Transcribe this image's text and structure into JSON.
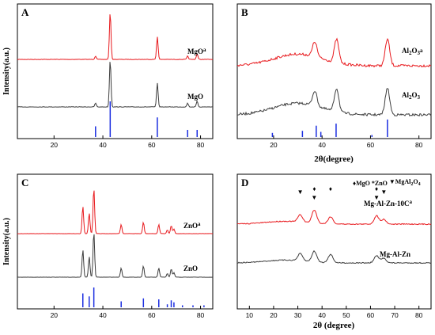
{
  "chart_data": [
    {
      "panel": "A",
      "type": "line",
      "xlabel": "",
      "ylabel": "Intensity(a.u.)",
      "xlim": [
        5,
        85
      ],
      "xticks": [
        20,
        40,
        60,
        80
      ],
      "series": [
        {
          "name": "MgO",
          "sup": "a",
          "color": "#e8191d",
          "peaks": [
            [
              37,
              0.07
            ],
            [
              43,
              1.0
            ],
            [
              62.3,
              0.48
            ],
            [
              74.7,
              0.07
            ],
            [
              78.6,
              0.12
            ]
          ]
        },
        {
          "name": "MgO",
          "sup": "",
          "color": "#3c3c3c",
          "peaks": [
            [
              37,
              0.08
            ],
            [
              43,
              1.0
            ],
            [
              62.3,
              0.5
            ],
            [
              74.7,
              0.08
            ],
            [
              78.6,
              0.12
            ]
          ]
        }
      ],
      "reference_lines": [
        [
          37,
          0.3
        ],
        [
          43,
          1.0
        ],
        [
          62.3,
          0.55
        ],
        [
          74.7,
          0.2
        ],
        [
          78.6,
          0.2
        ]
      ]
    },
    {
      "panel": "B",
      "type": "line",
      "xlabel": "2θ(degree)",
      "ylabel": "",
      "xlim": [
        5,
        85
      ],
      "xticks": [
        20,
        40,
        60,
        80
      ],
      "series": [
        {
          "name": "Al2O3",
          "sup": "a",
          "color": "#e8191d",
          "peaks": [
            [
              37,
              0.45
            ],
            [
              46,
              0.7
            ],
            [
              67,
              0.8
            ]
          ]
        },
        {
          "name": "Al2O3",
          "sup": "",
          "color": "#3c3c3c",
          "peaks": [
            [
              37,
              0.45
            ],
            [
              46,
              0.7
            ],
            [
              67,
              0.8
            ]
          ]
        }
      ],
      "reference_lines": [
        [
          19.5,
          0.2
        ],
        [
          31.9,
          0.3
        ],
        [
          37.6,
          0.55
        ],
        [
          39.5,
          0.25
        ],
        [
          45.8,
          0.65
        ],
        [
          60.6,
          0.1
        ],
        [
          67,
          0.85
        ]
      ]
    },
    {
      "panel": "C",
      "type": "line",
      "xlabel": "",
      "ylabel": "Intensity(a.u.)",
      "xlim": [
        5,
        85
      ],
      "xticks": [
        20,
        40,
        60,
        80
      ],
      "series": [
        {
          "name": "ZnO",
          "sup": "a",
          "color": "#e8191d",
          "peaks": [
            [
              31.8,
              0.6
            ],
            [
              34.4,
              0.45
            ],
            [
              36.3,
              1.0
            ],
            [
              47.5,
              0.2
            ],
            [
              56.6,
              0.25
            ],
            [
              62.9,
              0.2
            ],
            [
              66.4,
              0.08
            ],
            [
              68,
              0.18
            ],
            [
              69.1,
              0.1
            ]
          ]
        },
        {
          "name": "ZnO",
          "sup": "",
          "color": "#3c3c3c",
          "peaks": [
            [
              31.8,
              0.6
            ],
            [
              34.4,
              0.45
            ],
            [
              36.3,
              1.0
            ],
            [
              47.5,
              0.2
            ],
            [
              56.6,
              0.25
            ],
            [
              62.9,
              0.2
            ],
            [
              66.4,
              0.08
            ],
            [
              68,
              0.18
            ],
            [
              69.1,
              0.1
            ]
          ]
        }
      ],
      "reference_lines": [
        [
          31.8,
          0.7
        ],
        [
          34.4,
          0.55
        ],
        [
          36.3,
          1.0
        ],
        [
          47.5,
          0.3
        ],
        [
          56.6,
          0.45
        ],
        [
          62.9,
          0.4
        ],
        [
          66.4,
          0.15
        ],
        [
          68,
          0.35
        ],
        [
          69.1,
          0.25
        ],
        [
          72.6,
          0.1
        ],
        [
          76.9,
          0.1
        ],
        [
          81.4,
          0.1
        ]
      ]
    },
    {
      "panel": "D",
      "type": "line",
      "xlabel": "2θ (degree)",
      "ylabel": "",
      "xlim": [
        5,
        85
      ],
      "xticks": [
        10,
        20,
        30,
        40,
        50,
        60,
        70,
        80
      ],
      "legend": {
        "items": [
          "♦MgO",
          "*ZnO",
          "▼MgAl2O4"
        ]
      },
      "series": [
        {
          "name": "Mg-Al-Zn-10C",
          "sup": "a",
          "color": "#e8191d",
          "peaks": [
            [
              31,
              0.3
            ],
            [
              36.8,
              0.55
            ],
            [
              43.5,
              0.3
            ],
            [
              62.5,
              0.35
            ],
            [
              65.5,
              0.2
            ]
          ]
        },
        {
          "name": "Mg-Al-Zn",
          "sup": "",
          "color": "#3c3c3c",
          "peaks": [
            [
              31,
              0.3
            ],
            [
              36.8,
              0.45
            ],
            [
              43.5,
              0.35
            ],
            [
              62.5,
              0.3
            ],
            [
              65.5,
              0.2
            ]
          ]
        }
      ],
      "markers": [
        [
          31,
          "▼"
        ],
        [
          36.8,
          "♦"
        ],
        [
          36.8,
          "▼"
        ],
        [
          43.5,
          "♦"
        ],
        [
          62.5,
          "♦"
        ],
        [
          62.5,
          "▼"
        ],
        [
          65.5,
          "▼"
        ]
      ]
    }
  ]
}
